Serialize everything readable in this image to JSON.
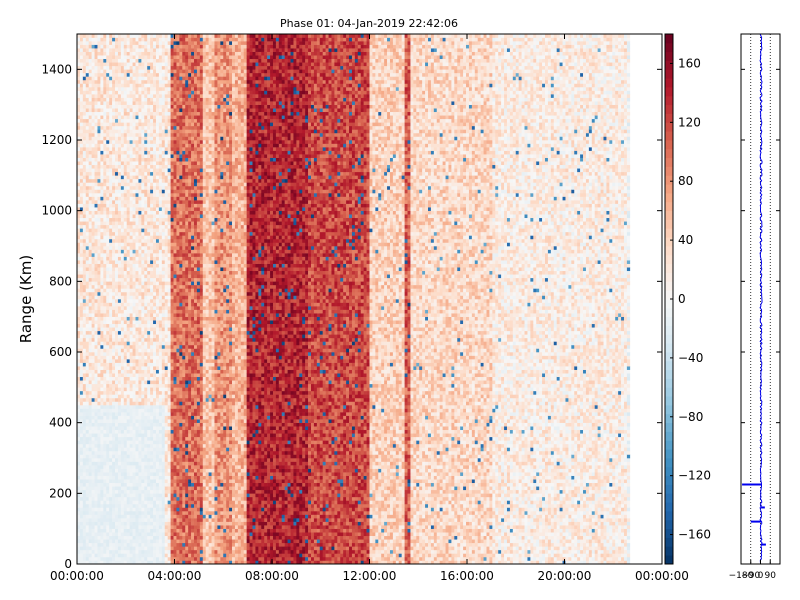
{
  "chart_data": [
    {
      "type": "heatmap",
      "title": "Phase 01: 04-Jan-2019 22:42:06",
      "xlabel": "",
      "ylabel": "Range (Km)",
      "x_ticks": [
        "00:00:00",
        "04:00:00",
        "08:00:00",
        "12:00:00",
        "16:00:00",
        "20:00:00",
        "00:00:00"
      ],
      "y_ticks": [
        0,
        200,
        400,
        600,
        800,
        1000,
        1200,
        1400
      ],
      "xlim_hours": [
        0,
        24
      ],
      "ylim": [
        0,
        1500
      ],
      "data_extent_hours": [
        0,
        22.6
      ],
      "colormap": "RdBu_r",
      "color_range": [
        -180,
        180
      ],
      "colorbar_ticks": [
        -160,
        -120,
        -80,
        -40,
        0,
        40,
        80,
        120,
        160
      ],
      "bands": [
        {
          "from_h": 0.0,
          "to_h": 3.8,
          "phase": 20
        },
        {
          "from_h": 3.8,
          "to_h": 5.2,
          "phase": 100
        },
        {
          "from_h": 5.2,
          "to_h": 5.6,
          "phase": 50
        },
        {
          "from_h": 5.6,
          "to_h": 6.4,
          "phase": 80
        },
        {
          "from_h": 6.4,
          "to_h": 7.0,
          "phase": 60
        },
        {
          "from_h": 7.0,
          "to_h": 9.5,
          "phase": 140
        },
        {
          "from_h": 9.5,
          "to_h": 12.0,
          "phase": 120
        },
        {
          "from_h": 12.0,
          "to_h": 13.4,
          "phase": 40
        },
        {
          "from_h": 13.4,
          "to_h": 13.7,
          "phase": 110
        },
        {
          "from_h": 13.7,
          "to_h": 17.0,
          "phase": 35
        },
        {
          "from_h": 17.0,
          "to_h": 22.6,
          "phase": 15
        }
      ],
      "grid": false
    },
    {
      "type": "line",
      "title": "",
      "xlabel": "",
      "ylabel": "",
      "x_ticks": [
        "−180",
        "−90",
        "0",
        "90"
      ],
      "xlim": [
        -180,
        180
      ],
      "ylim": [
        0,
        1500
      ],
      "spikes": [
        {
          "range_km": 225,
          "phase": -170
        },
        {
          "range_km": 160,
          "phase": 40
        },
        {
          "range_km": 120,
          "phase": -90
        },
        {
          "range_km": 55,
          "phase": 50
        }
      ],
      "grid": true
    }
  ]
}
